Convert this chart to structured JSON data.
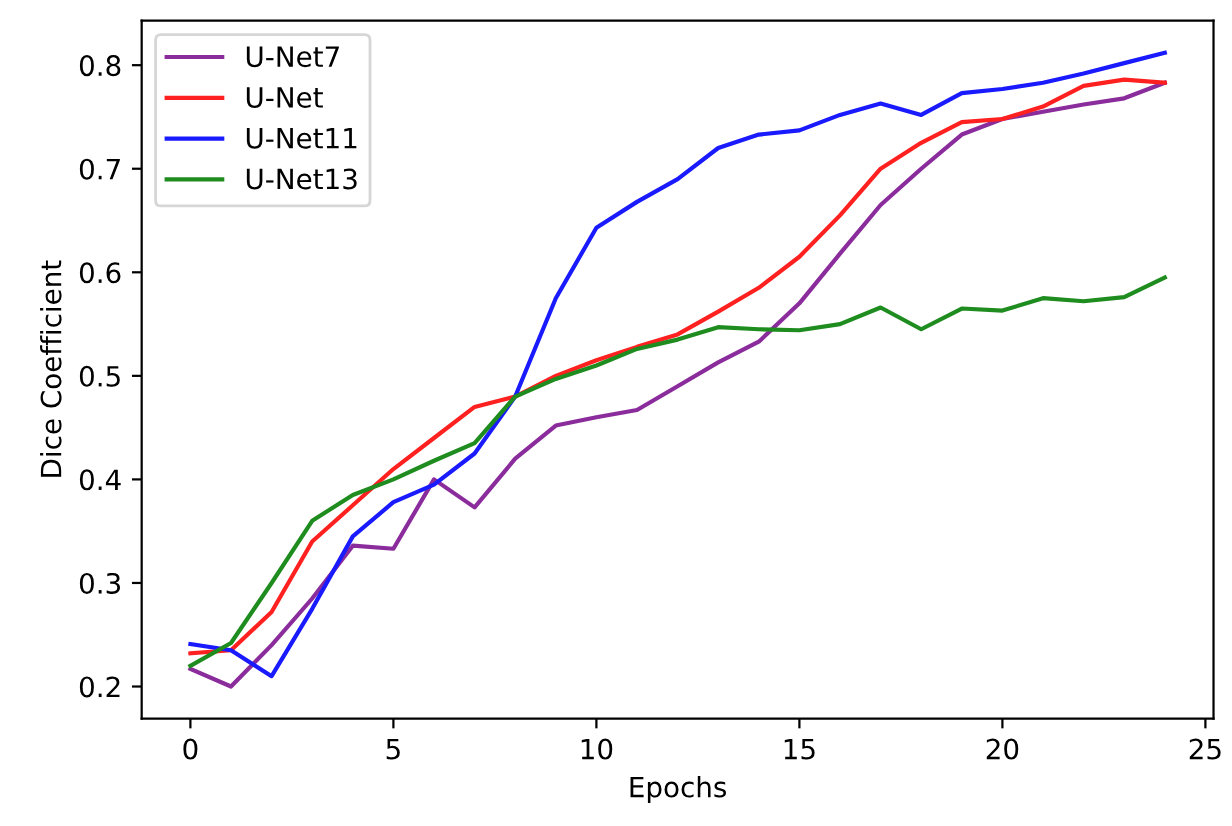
{
  "chart_data": {
    "type": "line",
    "xlabel": "Epochs",
    "ylabel": "Dice Coefficient",
    "x": [
      0,
      1,
      2,
      3,
      4,
      5,
      6,
      7,
      8,
      9,
      10,
      11,
      12,
      13,
      14,
      15,
      16,
      17,
      18,
      19,
      20,
      21,
      22,
      23,
      24
    ],
    "series": [
      {
        "name": "U-Net7",
        "color": "#8b2c9c",
        "values": [
          0.217,
          0.2,
          0.24,
          0.285,
          0.336,
          0.333,
          0.4,
          0.373,
          0.42,
          0.452,
          0.46,
          0.467,
          0.49,
          0.513,
          0.533,
          0.57,
          0.618,
          0.665,
          0.7,
          0.733,
          0.748,
          0.755,
          0.762,
          0.768,
          0.783
        ]
      },
      {
        "name": "U-Net",
        "color": "#ff2020",
        "values": [
          0.232,
          0.235,
          0.272,
          0.34,
          0.375,
          0.41,
          0.44,
          0.47,
          0.48,
          0.5,
          0.515,
          0.528,
          0.54,
          0.562,
          0.585,
          0.615,
          0.655,
          0.7,
          0.725,
          0.745,
          0.748,
          0.76,
          0.78,
          0.786,
          0.783
        ]
      },
      {
        "name": "U-Net11",
        "color": "#1a1aff",
        "values": [
          0.241,
          0.235,
          0.21,
          0.275,
          0.345,
          0.378,
          0.395,
          0.425,
          0.48,
          0.575,
          0.643,
          0.668,
          0.69,
          0.72,
          0.733,
          0.737,
          0.752,
          0.763,
          0.752,
          0.773,
          0.777,
          0.783,
          0.792,
          0.802,
          0.812
        ]
      },
      {
        "name": "U-Net13",
        "color": "#1e8c1e",
        "values": [
          0.22,
          0.242,
          0.3,
          0.36,
          0.385,
          0.4,
          0.418,
          0.435,
          0.48,
          0.497,
          0.51,
          0.526,
          0.535,
          0.547,
          0.545,
          0.544,
          0.55,
          0.566,
          0.545,
          0.565,
          0.563,
          0.575,
          0.572,
          0.576,
          0.595
        ]
      }
    ],
    "xlim": [
      -1.2,
      25.2
    ],
    "ylim": [
      0.169,
      0.843
    ],
    "xticks": [
      0,
      5,
      10,
      15,
      20,
      25
    ],
    "yticks": [
      0.2,
      0.3,
      0.4,
      0.5,
      0.6,
      0.7,
      0.8
    ],
    "legend": "top left",
    "grid": false
  }
}
